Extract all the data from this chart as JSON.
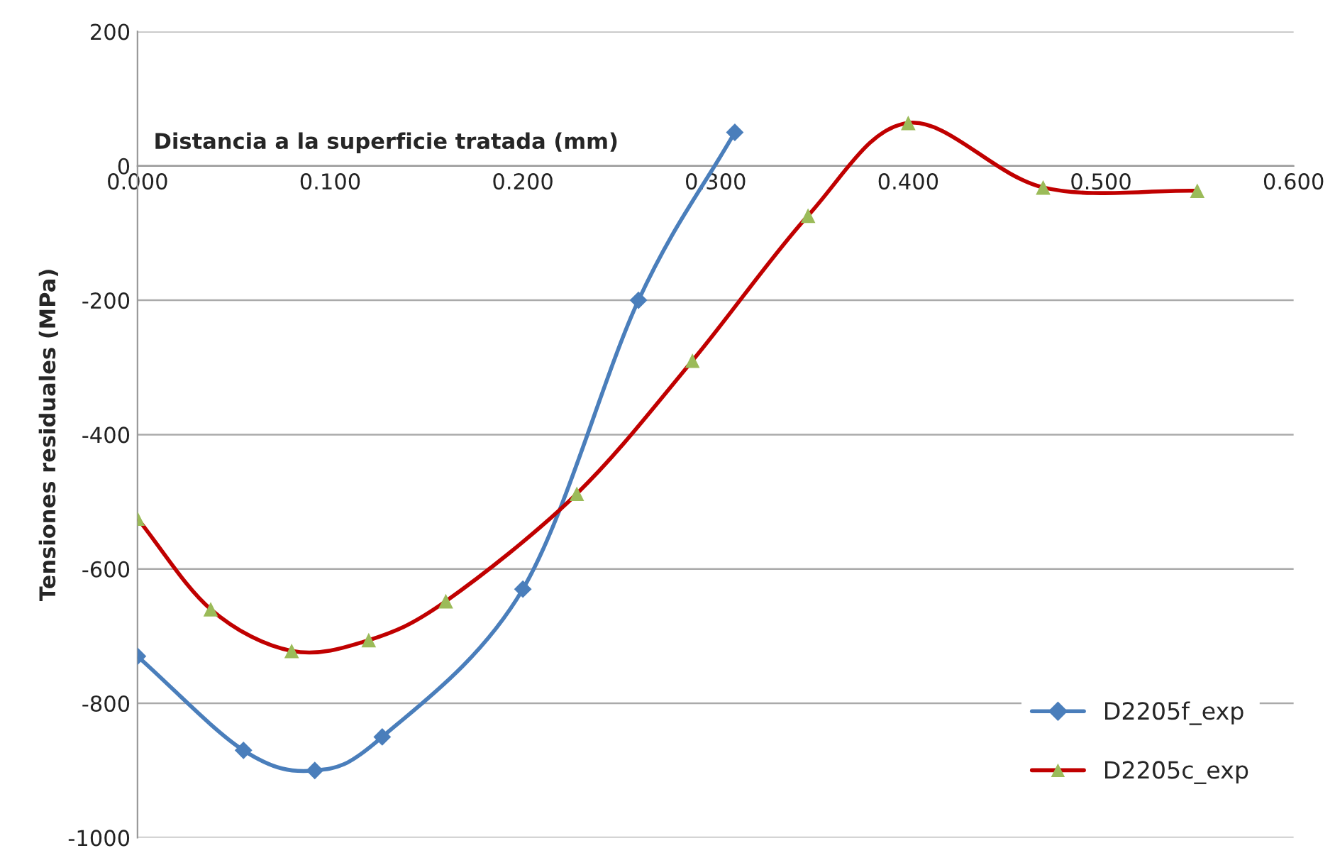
{
  "chart_data": {
    "type": "line",
    "xlabel": "Distancia a la superficie tratada (mm)",
    "ylabel": "Tensiones residuales (MPa)",
    "xlim": [
      0,
      0.6
    ],
    "xticks": [
      {
        "value": 0,
        "label": "0.000"
      },
      {
        "value": 0.1,
        "label": "0.100"
      },
      {
        "value": 0.2,
        "label": "0.200"
      },
      {
        "value": 0.3,
        "label": "0.300"
      },
      {
        "value": 0.4,
        "label": "0.400"
      },
      {
        "value": 0.5,
        "label": "0.500"
      },
      {
        "value": 0.6,
        "label": "0.600"
      }
    ],
    "ylim": [
      -1000,
      200
    ],
    "yticks": [
      -1000,
      -800,
      -600,
      -400,
      -200,
      0,
      200
    ],
    "grid": "y",
    "legend": "bottom right",
    "line_style": "solid",
    "series": [
      {
        "name": "D2205f_exp",
        "color": "#4a7ebb",
        "marker": "diamond",
        "x": [
          0,
          0.055,
          0.092,
          0.127,
          0.2,
          0.26,
          0.31
        ],
        "values": [
          -730,
          -870,
          -900,
          -850,
          -630,
          -200,
          50
        ]
      },
      {
        "name": "D2205c_exp",
        "color": "#c00000",
        "colors": [
          "#9bbb59",
          "#9bbb59",
          "#9bbb59",
          "#9bbb59",
          "#9bbb59",
          "#9bbb59",
          "#9bbb59",
          "#9bbb59",
          "#9bbb59",
          "#9bbb59",
          "#9bbb59"
        ],
        "marker": "triangle",
        "x": [
          0,
          0.038,
          0.08,
          0.12,
          0.16,
          0.228,
          0.288,
          0.348,
          0.4,
          0.47,
          0.55
        ],
        "values": [
          -525,
          -660,
          -722,
          -706,
          -648,
          -488,
          -290,
          -74,
          64,
          -32,
          -37
        ]
      }
    ]
  }
}
